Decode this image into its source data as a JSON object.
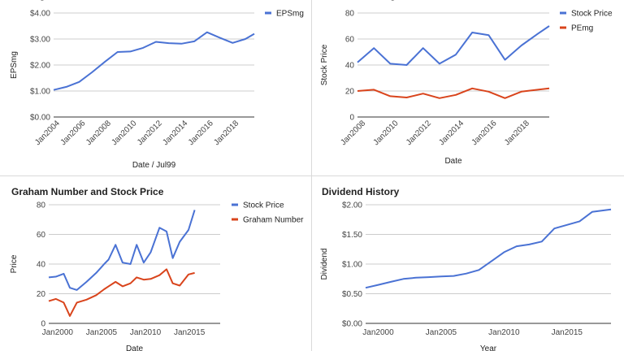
{
  "chart_data": [
    {
      "id": "eps",
      "type": "line",
      "title": "EPSmg",
      "xlabel": "Date / Jul99",
      "ylabel": "EPSmg",
      "ylim": [
        0,
        4
      ],
      "xlim": [
        2003.5,
        2019.2
      ],
      "yticks": [
        0,
        1,
        2,
        3,
        4
      ],
      "ytick_labels": [
        "$0.00",
        "$1.00",
        "$2.00",
        "$3.00",
        "$4.00"
      ],
      "xticks": [
        2004,
        2006,
        2008,
        2010,
        2012,
        2014,
        2016,
        2018
      ],
      "xtick_labels": [
        "Jan2004",
        "Jan2006",
        "Jan2008",
        "Jan2010",
        "Jan2012",
        "Jan2014",
        "Jan2016",
        "Jan2018"
      ],
      "legend": "top-right",
      "series": [
        {
          "name": "EPSmg",
          "color": "#4a72d4",
          "points": [
            [
              2003.5,
              1.04
            ],
            [
              2004.5,
              1.16
            ],
            [
              2005.5,
              1.35
            ],
            [
              2006.5,
              1.72
            ],
            [
              2007.5,
              2.12
            ],
            [
              2008.5,
              2.5
            ],
            [
              2009.5,
              2.52
            ],
            [
              2010.5,
              2.66
            ],
            [
              2011.5,
              2.89
            ],
            [
              2012.5,
              2.84
            ],
            [
              2013.5,
              2.82
            ],
            [
              2014.5,
              2.91
            ],
            [
              2015.5,
              3.26
            ],
            [
              2016.5,
              3.05
            ],
            [
              2017.5,
              2.85
            ],
            [
              2018.5,
              3.0
            ],
            [
              2019.2,
              3.2
            ]
          ]
        }
      ]
    },
    {
      "id": "price-pe",
      "type": "line",
      "title": "Price and PEmg",
      "xlabel": "Date",
      "ylabel": "Stock Price",
      "ylim": [
        0,
        80
      ],
      "xlim": [
        2007.5,
        2019.2
      ],
      "yticks": [
        0,
        20,
        40,
        60,
        80
      ],
      "ytick_labels": [
        "0",
        "20",
        "40",
        "60",
        "80"
      ],
      "xticks": [
        2008,
        2010,
        2012,
        2014,
        2016,
        2018
      ],
      "xtick_labels": [
        "Jan2008",
        "Jan2010",
        "Jan2012",
        "Jan2014",
        "Jan2016",
        "Jan2018"
      ],
      "legend": "top-right",
      "series": [
        {
          "name": "Stock Price",
          "color": "#4a72d4",
          "points": [
            [
              2007.5,
              42
            ],
            [
              2008.5,
              53
            ],
            [
              2009.5,
              41
            ],
            [
              2010.5,
              40
            ],
            [
              2011.5,
              53
            ],
            [
              2012.5,
              41
            ],
            [
              2013.5,
              48
            ],
            [
              2014.5,
              65
            ],
            [
              2015.5,
              63
            ],
            [
              2016.5,
              44
            ],
            [
              2017.5,
              55
            ],
            [
              2018.5,
              64
            ],
            [
              2019.2,
              70
            ]
          ]
        },
        {
          "name": "PEmg",
          "color": "#d9441c",
          "points": [
            [
              2007.5,
              20
            ],
            [
              2008.5,
              21
            ],
            [
              2009.5,
              16
            ],
            [
              2010.5,
              15
            ],
            [
              2011.5,
              18
            ],
            [
              2012.5,
              14.5
            ],
            [
              2013.5,
              17
            ],
            [
              2014.5,
              22
            ],
            [
              2015.5,
              19.5
            ],
            [
              2016.5,
              14.5
            ],
            [
              2017.5,
              19.5
            ],
            [
              2018.5,
              21
            ],
            [
              2019.2,
              22
            ]
          ]
        }
      ]
    },
    {
      "id": "graham",
      "type": "line",
      "title": "Graham Number and Stock Price",
      "xlabel": "Date",
      "ylabel": "Price",
      "ylim": [
        0,
        80
      ],
      "xlim": [
        1999.0,
        2018.5
      ],
      "yticks": [
        0,
        20,
        40,
        60,
        80
      ],
      "ytick_labels": [
        "0",
        "20",
        "40",
        "60",
        "80"
      ],
      "xticks": [
        2000,
        2005,
        2010,
        2015
      ],
      "xtick_labels": [
        "Jan2000",
        "Jan2005",
        "Jan2010",
        "Jan2015"
      ],
      "legend": "top-right",
      "series": [
        {
          "name": "Stock Price",
          "color": "#4a72d4",
          "points": [
            [
              1999.0,
              31
            ],
            [
              1999.8,
              31.5
            ],
            [
              2000.7,
              33.5
            ],
            [
              2001.4,
              24
            ],
            [
              2002.2,
              22.5
            ],
            [
              2003.3,
              28
            ],
            [
              2004.4,
              34
            ],
            [
              2005.3,
              40
            ],
            [
              2005.8,
              43
            ],
            [
              2006.6,
              53
            ],
            [
              2007.4,
              41
            ],
            [
              2008.3,
              40
            ],
            [
              2009.0,
              53
            ],
            [
              2009.8,
              41
            ],
            [
              2010.6,
              48
            ],
            [
              2011.6,
              64.5
            ],
            [
              2012.4,
              62
            ],
            [
              2013.1,
              44
            ],
            [
              2013.9,
              55
            ],
            [
              2014.9,
              63
            ],
            [
              2015.6,
              76.5
            ]
          ]
        },
        {
          "name": "Graham Number",
          "color": "#d9441c",
          "points": [
            [
              1999.0,
              15
            ],
            [
              1999.8,
              16.5
            ],
            [
              2000.7,
              14
            ],
            [
              2001.4,
              5
            ],
            [
              2002.2,
              14
            ],
            [
              2003.3,
              16
            ],
            [
              2004.4,
              19
            ],
            [
              2005.3,
              23
            ],
            [
              2005.8,
              25
            ],
            [
              2006.6,
              28
            ],
            [
              2007.4,
              25
            ],
            [
              2008.3,
              27
            ],
            [
              2009.0,
              31
            ],
            [
              2009.8,
              29.5
            ],
            [
              2010.6,
              30
            ],
            [
              2011.6,
              32.5
            ],
            [
              2012.4,
              36.5
            ],
            [
              2013.1,
              27
            ],
            [
              2013.9,
              25.5
            ],
            [
              2014.9,
              33
            ],
            [
              2015.6,
              34
            ]
          ]
        }
      ]
    },
    {
      "id": "dividend",
      "type": "line",
      "title": "Dividend History",
      "xlabel": "Year",
      "ylabel": "Dividend",
      "ylim": [
        0,
        2
      ],
      "xlim": [
        1999.0,
        2018.5
      ],
      "yticks": [
        0,
        0.5,
        1.0,
        1.5,
        2.0
      ],
      "ytick_labels": [
        "$0.00",
        "$0.50",
        "$1.00",
        "$1.50",
        "$2.00"
      ],
      "xticks": [
        2000,
        2005,
        2010,
        2015
      ],
      "xtick_labels": [
        "Jan2000",
        "Jan2005",
        "Jan2010",
        "Jan2015"
      ],
      "legend": "none",
      "series": [
        {
          "name": "Dividend",
          "color": "#4a72d4",
          "points": [
            [
              1999.0,
              0.6
            ],
            [
              2000.0,
              0.65
            ],
            [
              2001.0,
              0.7
            ],
            [
              2002.0,
              0.75
            ],
            [
              2003.0,
              0.77
            ],
            [
              2004.0,
              0.78
            ],
            [
              2005.0,
              0.79
            ],
            [
              2006.0,
              0.8
            ],
            [
              2007.0,
              0.84
            ],
            [
              2008.0,
              0.9
            ],
            [
              2009.0,
              1.05
            ],
            [
              2010.0,
              1.2
            ],
            [
              2011.0,
              1.3
            ],
            [
              2012.0,
              1.33
            ],
            [
              2013.0,
              1.38
            ],
            [
              2014.0,
              1.6
            ],
            [
              2015.0,
              1.66
            ],
            [
              2016.0,
              1.72
            ],
            [
              2017.0,
              1.88
            ],
            [
              2018.5,
              1.92
            ]
          ]
        }
      ]
    }
  ]
}
